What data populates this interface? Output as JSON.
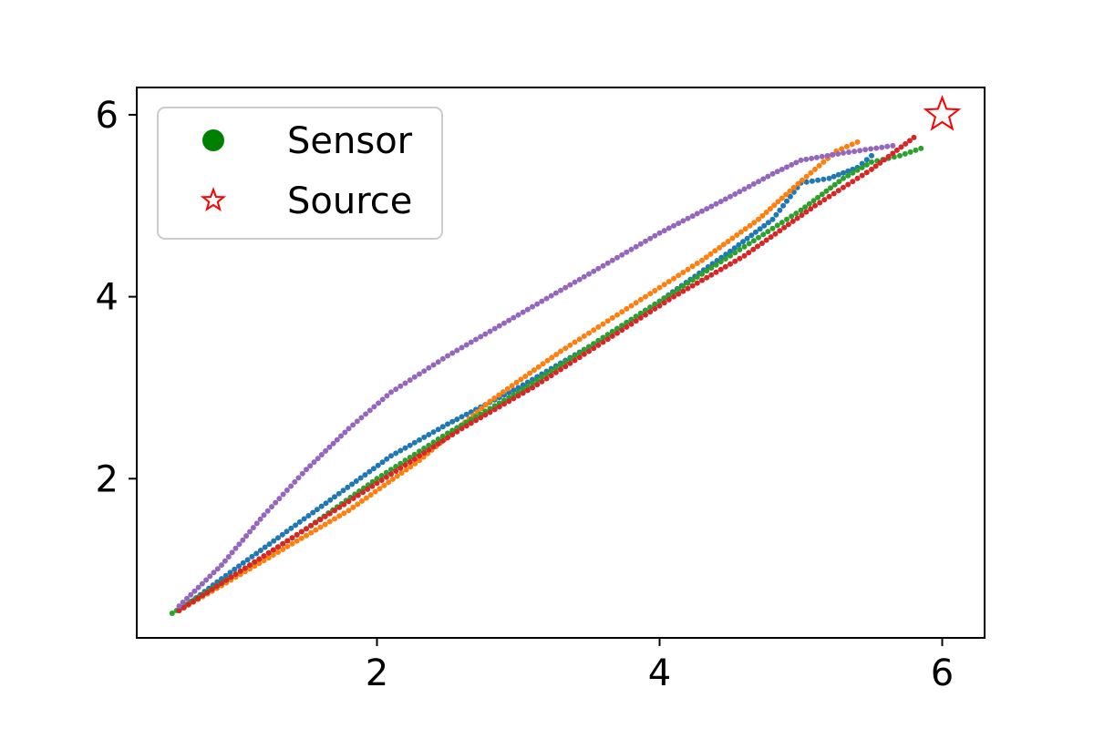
{
  "chart_data": {
    "type": "scatter",
    "title": "",
    "xlabel": "",
    "ylabel": "",
    "xlim": [
      0.3,
      6.3
    ],
    "ylim": [
      0.25,
      6.3
    ],
    "xticks": [
      2,
      4,
      6
    ],
    "yticks": [
      2,
      4,
      6
    ],
    "grid": false,
    "legend": {
      "placement": "top-left",
      "entries": [
        {
          "label": "Sensor",
          "marker": "circle",
          "color": "#008000"
        },
        {
          "label": "Source",
          "marker": "star",
          "color": "#ff0000"
        }
      ]
    },
    "source": {
      "x": 6.0,
      "y": 6.0,
      "color": "#ff0000"
    },
    "trajectories": [
      {
        "color": "#1f77b4",
        "points": [
          [
            0.6,
            0.55
          ],
          [
            0.9,
            0.9
          ],
          [
            1.3,
            1.35
          ],
          [
            1.7,
            1.8
          ],
          [
            2.1,
            2.25
          ],
          [
            2.5,
            2.6
          ],
          [
            3.0,
            3.0
          ],
          [
            3.5,
            3.45
          ],
          [
            4.0,
            3.95
          ],
          [
            4.5,
            4.5
          ],
          [
            4.8,
            4.85
          ],
          [
            5.0,
            5.25
          ],
          [
            5.2,
            5.3
          ],
          [
            5.4,
            5.42
          ],
          [
            5.5,
            5.55
          ]
        ]
      },
      {
        "color": "#ff7f0e",
        "points": [
          [
            0.6,
            0.55
          ],
          [
            1.2,
            1.1
          ],
          [
            1.8,
            1.65
          ],
          [
            2.3,
            2.2
          ],
          [
            2.8,
            2.85
          ],
          [
            3.3,
            3.4
          ],
          [
            3.8,
            3.9
          ],
          [
            4.3,
            4.4
          ],
          [
            4.7,
            4.85
          ],
          [
            4.95,
            5.2
          ],
          [
            5.1,
            5.4
          ],
          [
            5.25,
            5.6
          ],
          [
            5.4,
            5.7
          ]
        ]
      },
      {
        "color": "#2ca02c",
        "points": [
          [
            0.55,
            0.52
          ],
          [
            1.0,
            0.95
          ],
          [
            1.5,
            1.45
          ],
          [
            2.0,
            2.0
          ],
          [
            2.5,
            2.5
          ],
          [
            3.0,
            2.95
          ],
          [
            3.5,
            3.45
          ],
          [
            4.0,
            3.95
          ],
          [
            4.5,
            4.45
          ],
          [
            5.0,
            4.95
          ],
          [
            5.3,
            5.3
          ],
          [
            5.5,
            5.48
          ],
          [
            5.7,
            5.55
          ],
          [
            5.85,
            5.63
          ]
        ]
      },
      {
        "color": "#d62728",
        "points": [
          [
            0.6,
            0.55
          ],
          [
            1.1,
            1.05
          ],
          [
            1.6,
            1.55
          ],
          [
            2.1,
            2.05
          ],
          [
            2.6,
            2.55
          ],
          [
            3.1,
            3.0
          ],
          [
            3.6,
            3.5
          ],
          [
            4.1,
            4.0
          ],
          [
            4.6,
            4.45
          ],
          [
            5.1,
            5.0
          ],
          [
            5.5,
            5.4
          ],
          [
            5.8,
            5.75
          ]
        ]
      },
      {
        "color": "#9467bd",
        "points": [
          [
            0.6,
            0.6
          ],
          [
            0.9,
            1.05
          ],
          [
            1.2,
            1.6
          ],
          [
            1.5,
            2.1
          ],
          [
            1.8,
            2.55
          ],
          [
            2.1,
            2.95
          ],
          [
            2.5,
            3.35
          ],
          [
            3.0,
            3.8
          ],
          [
            3.5,
            4.25
          ],
          [
            4.0,
            4.7
          ],
          [
            4.5,
            5.1
          ],
          [
            4.8,
            5.35
          ],
          [
            5.0,
            5.5
          ],
          [
            5.3,
            5.58
          ],
          [
            5.65,
            5.66
          ]
        ]
      }
    ]
  }
}
